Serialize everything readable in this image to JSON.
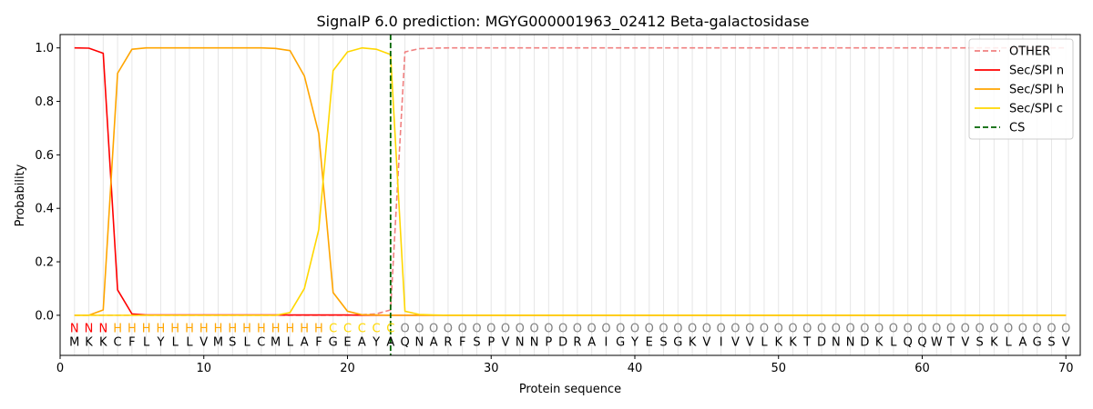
{
  "chart_data": {
    "type": "line",
    "title": "SignalP 6.0 prediction: MGYG000001963_02412 Beta-galactosidase",
    "xlabel": "Protein sequence",
    "ylabel": "Probability",
    "xlim": [
      0,
      71
    ],
    "ylim": [
      -0.15,
      1.05
    ],
    "xticks": [
      0,
      10,
      20,
      30,
      40,
      50,
      60,
      70
    ],
    "yticks": [
      0.0,
      0.2,
      0.4,
      0.6,
      0.8,
      1.0
    ],
    "xtick_labels": [
      "0",
      "10",
      "20",
      "30",
      "40",
      "50",
      "60",
      "70"
    ],
    "ytick_labels": [
      "0.0",
      "0.2",
      "0.4",
      "0.6",
      "0.8",
      "1.0"
    ],
    "grid": "vertical lines at each residue",
    "legend_position": "top-right",
    "sequence": [
      "M",
      "K",
      "K",
      "C",
      "F",
      "L",
      "Y",
      "L",
      "L",
      "V",
      "M",
      "S",
      "L",
      "C",
      "M",
      "L",
      "A",
      "F",
      "G",
      "E",
      "A",
      "Y",
      "A",
      "Q",
      "N",
      "A",
      "R",
      "F",
      "S",
      "P",
      "V",
      "N",
      "N",
      "P",
      "D",
      "R",
      "A",
      "I",
      "G",
      "Y",
      "E",
      "S",
      "G",
      "K",
      "V",
      "I",
      "V",
      "V",
      "L",
      "K",
      "K",
      "T",
      "D",
      "N",
      "N",
      "D",
      "K",
      "L",
      "Q",
      "Q",
      "W",
      "T",
      "V",
      "S",
      "K",
      "L",
      "A",
      "G",
      "S",
      "V"
    ],
    "labels": [
      "N",
      "N",
      "N",
      "H",
      "H",
      "H",
      "H",
      "H",
      "H",
      "H",
      "H",
      "H",
      "H",
      "H",
      "H",
      "H",
      "H",
      "H",
      "C",
      "C",
      "C",
      "C",
      "C",
      "O",
      "O",
      "O",
      "O",
      "O",
      "O",
      "O",
      "O",
      "O",
      "O",
      "O",
      "O",
      "O",
      "O",
      "O",
      "O",
      "O",
      "O",
      "O",
      "O",
      "O",
      "O",
      "O",
      "O",
      "O",
      "O",
      "O",
      "O",
      "O",
      "O",
      "O",
      "O",
      "O",
      "O",
      "O",
      "O",
      "O",
      "O",
      "O",
      "O",
      "O",
      "O",
      "O",
      "O",
      "O",
      "O",
      "O"
    ],
    "label_colors": {
      "N": "#ff0000",
      "H": "#ffa500",
      "C": "#ffd700",
      "O": "#808080"
    },
    "x": [
      1,
      2,
      3,
      4,
      5,
      6,
      7,
      8,
      9,
      10,
      11,
      12,
      13,
      14,
      15,
      16,
      17,
      18,
      19,
      20,
      21,
      22,
      23,
      24,
      25,
      26,
      27,
      28,
      29,
      30,
      31,
      32,
      33,
      34,
      35,
      36,
      37,
      38,
      39,
      40,
      41,
      42,
      43,
      44,
      45,
      46,
      47,
      48,
      49,
      50,
      51,
      52,
      53,
      54,
      55,
      56,
      57,
      58,
      59,
      60,
      61,
      62,
      63,
      64,
      65,
      66,
      67,
      68,
      69,
      70
    ],
    "series": [
      {
        "name": "OTHER",
        "color": "#f08080",
        "dash": "dashed",
        "values": [
          0,
          0,
          0,
          0,
          0,
          0,
          0,
          0,
          0,
          0,
          0,
          0,
          0,
          0,
          0,
          0,
          0,
          0,
          0,
          0,
          0.002,
          0.005,
          0.02,
          0.985,
          0.997,
          0.999,
          1,
          1,
          1,
          1,
          1,
          1,
          1,
          1,
          1,
          1,
          1,
          1,
          1,
          1,
          1,
          1,
          1,
          1,
          1,
          1,
          1,
          1,
          1,
          1,
          1,
          1,
          1,
          1,
          1,
          1,
          1,
          1,
          1,
          1,
          1,
          1,
          1,
          1,
          1,
          1,
          1,
          1,
          1,
          1
        ]
      },
      {
        "name": "Sec/SPI n",
        "color": "#ff0000",
        "dash": "solid",
        "values": [
          1.0,
          0.999,
          0.98,
          0.095,
          0.005,
          0.001,
          0.001,
          0.001,
          0.001,
          0.001,
          0.001,
          0.001,
          0.001,
          0.001,
          0.001,
          0.001,
          0.001,
          0.001,
          0.001,
          0.001,
          0,
          0,
          0,
          0,
          0,
          0,
          0,
          0,
          0,
          0,
          0,
          0,
          0,
          0,
          0,
          0,
          0,
          0,
          0,
          0,
          0,
          0,
          0,
          0,
          0,
          0,
          0,
          0,
          0,
          0,
          0,
          0,
          0,
          0,
          0,
          0,
          0,
          0,
          0,
          0,
          0,
          0,
          0,
          0,
          0,
          0,
          0,
          0,
          0,
          0
        ]
      },
      {
        "name": "Sec/SPI h",
        "color": "#ffa500",
        "dash": "solid",
        "values": [
          0,
          0,
          0.02,
          0.905,
          0.995,
          1.0,
          1.0,
          1.0,
          1.0,
          1.0,
          1.0,
          1.0,
          1.0,
          1.0,
          0.998,
          0.99,
          0.895,
          0.68,
          0.085,
          0.015,
          0.002,
          0.001,
          0,
          0,
          0,
          0,
          0,
          0,
          0,
          0,
          0,
          0,
          0,
          0,
          0,
          0,
          0,
          0,
          0,
          0,
          0,
          0,
          0,
          0,
          0,
          0,
          0,
          0,
          0,
          0,
          0,
          0,
          0,
          0,
          0,
          0,
          0,
          0,
          0,
          0,
          0,
          0,
          0,
          0,
          0,
          0,
          0,
          0,
          0,
          0
        ]
      },
      {
        "name": "Sec/SPI c",
        "color": "#ffd700",
        "dash": "solid",
        "values": [
          0,
          0,
          0,
          0,
          0,
          0,
          0,
          0,
          0,
          0,
          0,
          0,
          0,
          0,
          0,
          0.01,
          0.1,
          0.32,
          0.915,
          0.985,
          1.0,
          0.995,
          0.975,
          0.015,
          0.003,
          0.001,
          0,
          0,
          0,
          0,
          0,
          0,
          0,
          0,
          0,
          0,
          0,
          0,
          0,
          0,
          0,
          0,
          0,
          0,
          0,
          0,
          0,
          0,
          0,
          0,
          0,
          0,
          0,
          0,
          0,
          0,
          0,
          0,
          0,
          0,
          0,
          0,
          0,
          0,
          0,
          0,
          0,
          0,
          0,
          0
        ]
      }
    ],
    "cs": {
      "name": "CS",
      "x": 23,
      "color": "#006400"
    }
  }
}
